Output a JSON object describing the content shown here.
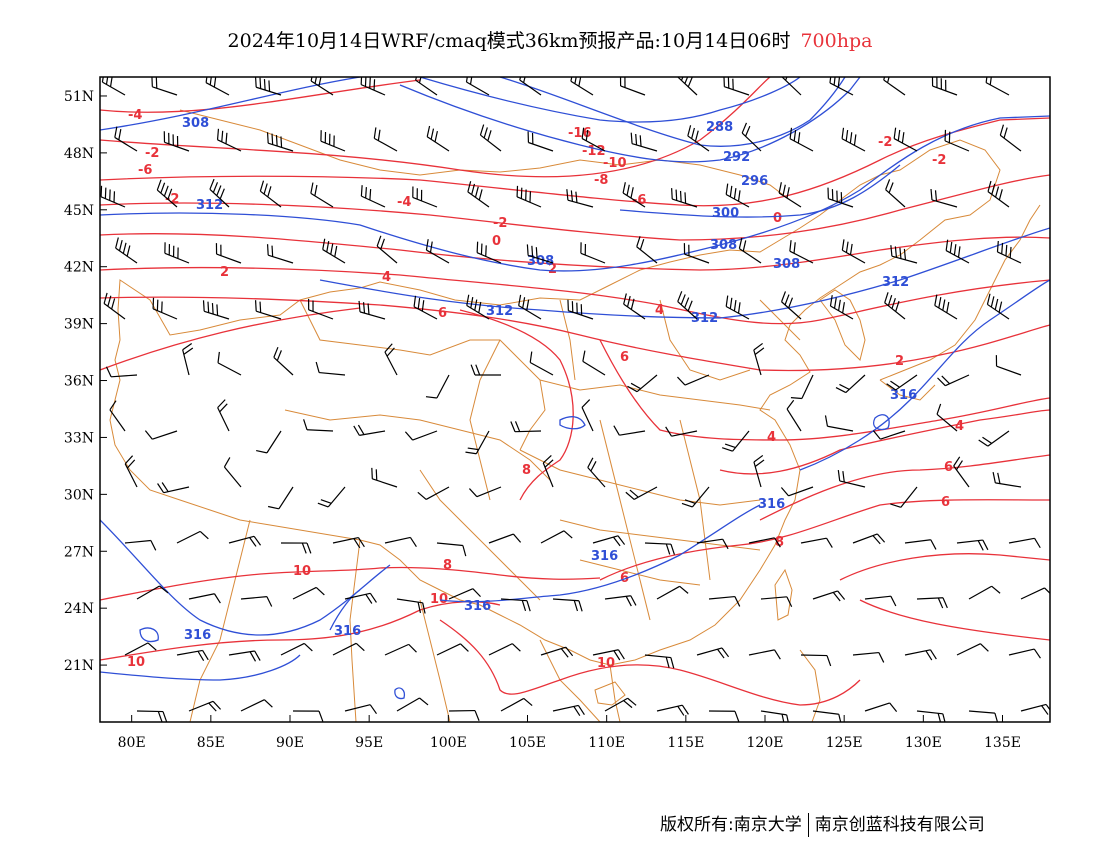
{
  "title": {
    "main": "2024年10月14日WRF/cmaq模式36km预报产品:10月14日06时",
    "level": "700hpa",
    "level_color": "#e8323a"
  },
  "axes": {
    "lat_labels": [
      "51N",
      "48N",
      "45N",
      "42N",
      "39N",
      "36N",
      "33N",
      "30N",
      "27N",
      "24N",
      "21N"
    ],
    "lon_labels": [
      "80E",
      "85E",
      "90E",
      "95E",
      "100E",
      "105E",
      "110E",
      "115E",
      "120E",
      "125E",
      "130E",
      "135E"
    ]
  },
  "map_data": {
    "lon_range": [
      78,
      138
    ],
    "lat_range": [
      18,
      52
    ],
    "temperature_contours": {
      "color": "#e8323a",
      "labels": [
        "-4",
        "-2",
        "-6",
        "-2",
        "0",
        "2",
        "-16",
        "-12",
        "-10",
        "-8",
        "-6",
        "-4",
        "-2",
        "0",
        "-2",
        "-2",
        "2",
        "4",
        "4",
        "6",
        "6",
        "8",
        "8",
        "10",
        "10",
        "10",
        "10",
        "6",
        "6",
        "8",
        "4",
        "4",
        "6",
        "2"
      ]
    },
    "height_contours": {
      "color": "#2f4fd6",
      "labels": [
        "308",
        "312",
        "308",
        "312",
        "312",
        "288",
        "292",
        "296",
        "300",
        "308",
        "308",
        "312",
        "316",
        "316",
        "316",
        "316",
        "316",
        "316"
      ]
    },
    "wind_barb_color": "#000000",
    "boundary_color": "#d88a3a"
  },
  "footer": {
    "left": "版权所有:南京大学",
    "right": "南京创蓝科技有限公司"
  }
}
